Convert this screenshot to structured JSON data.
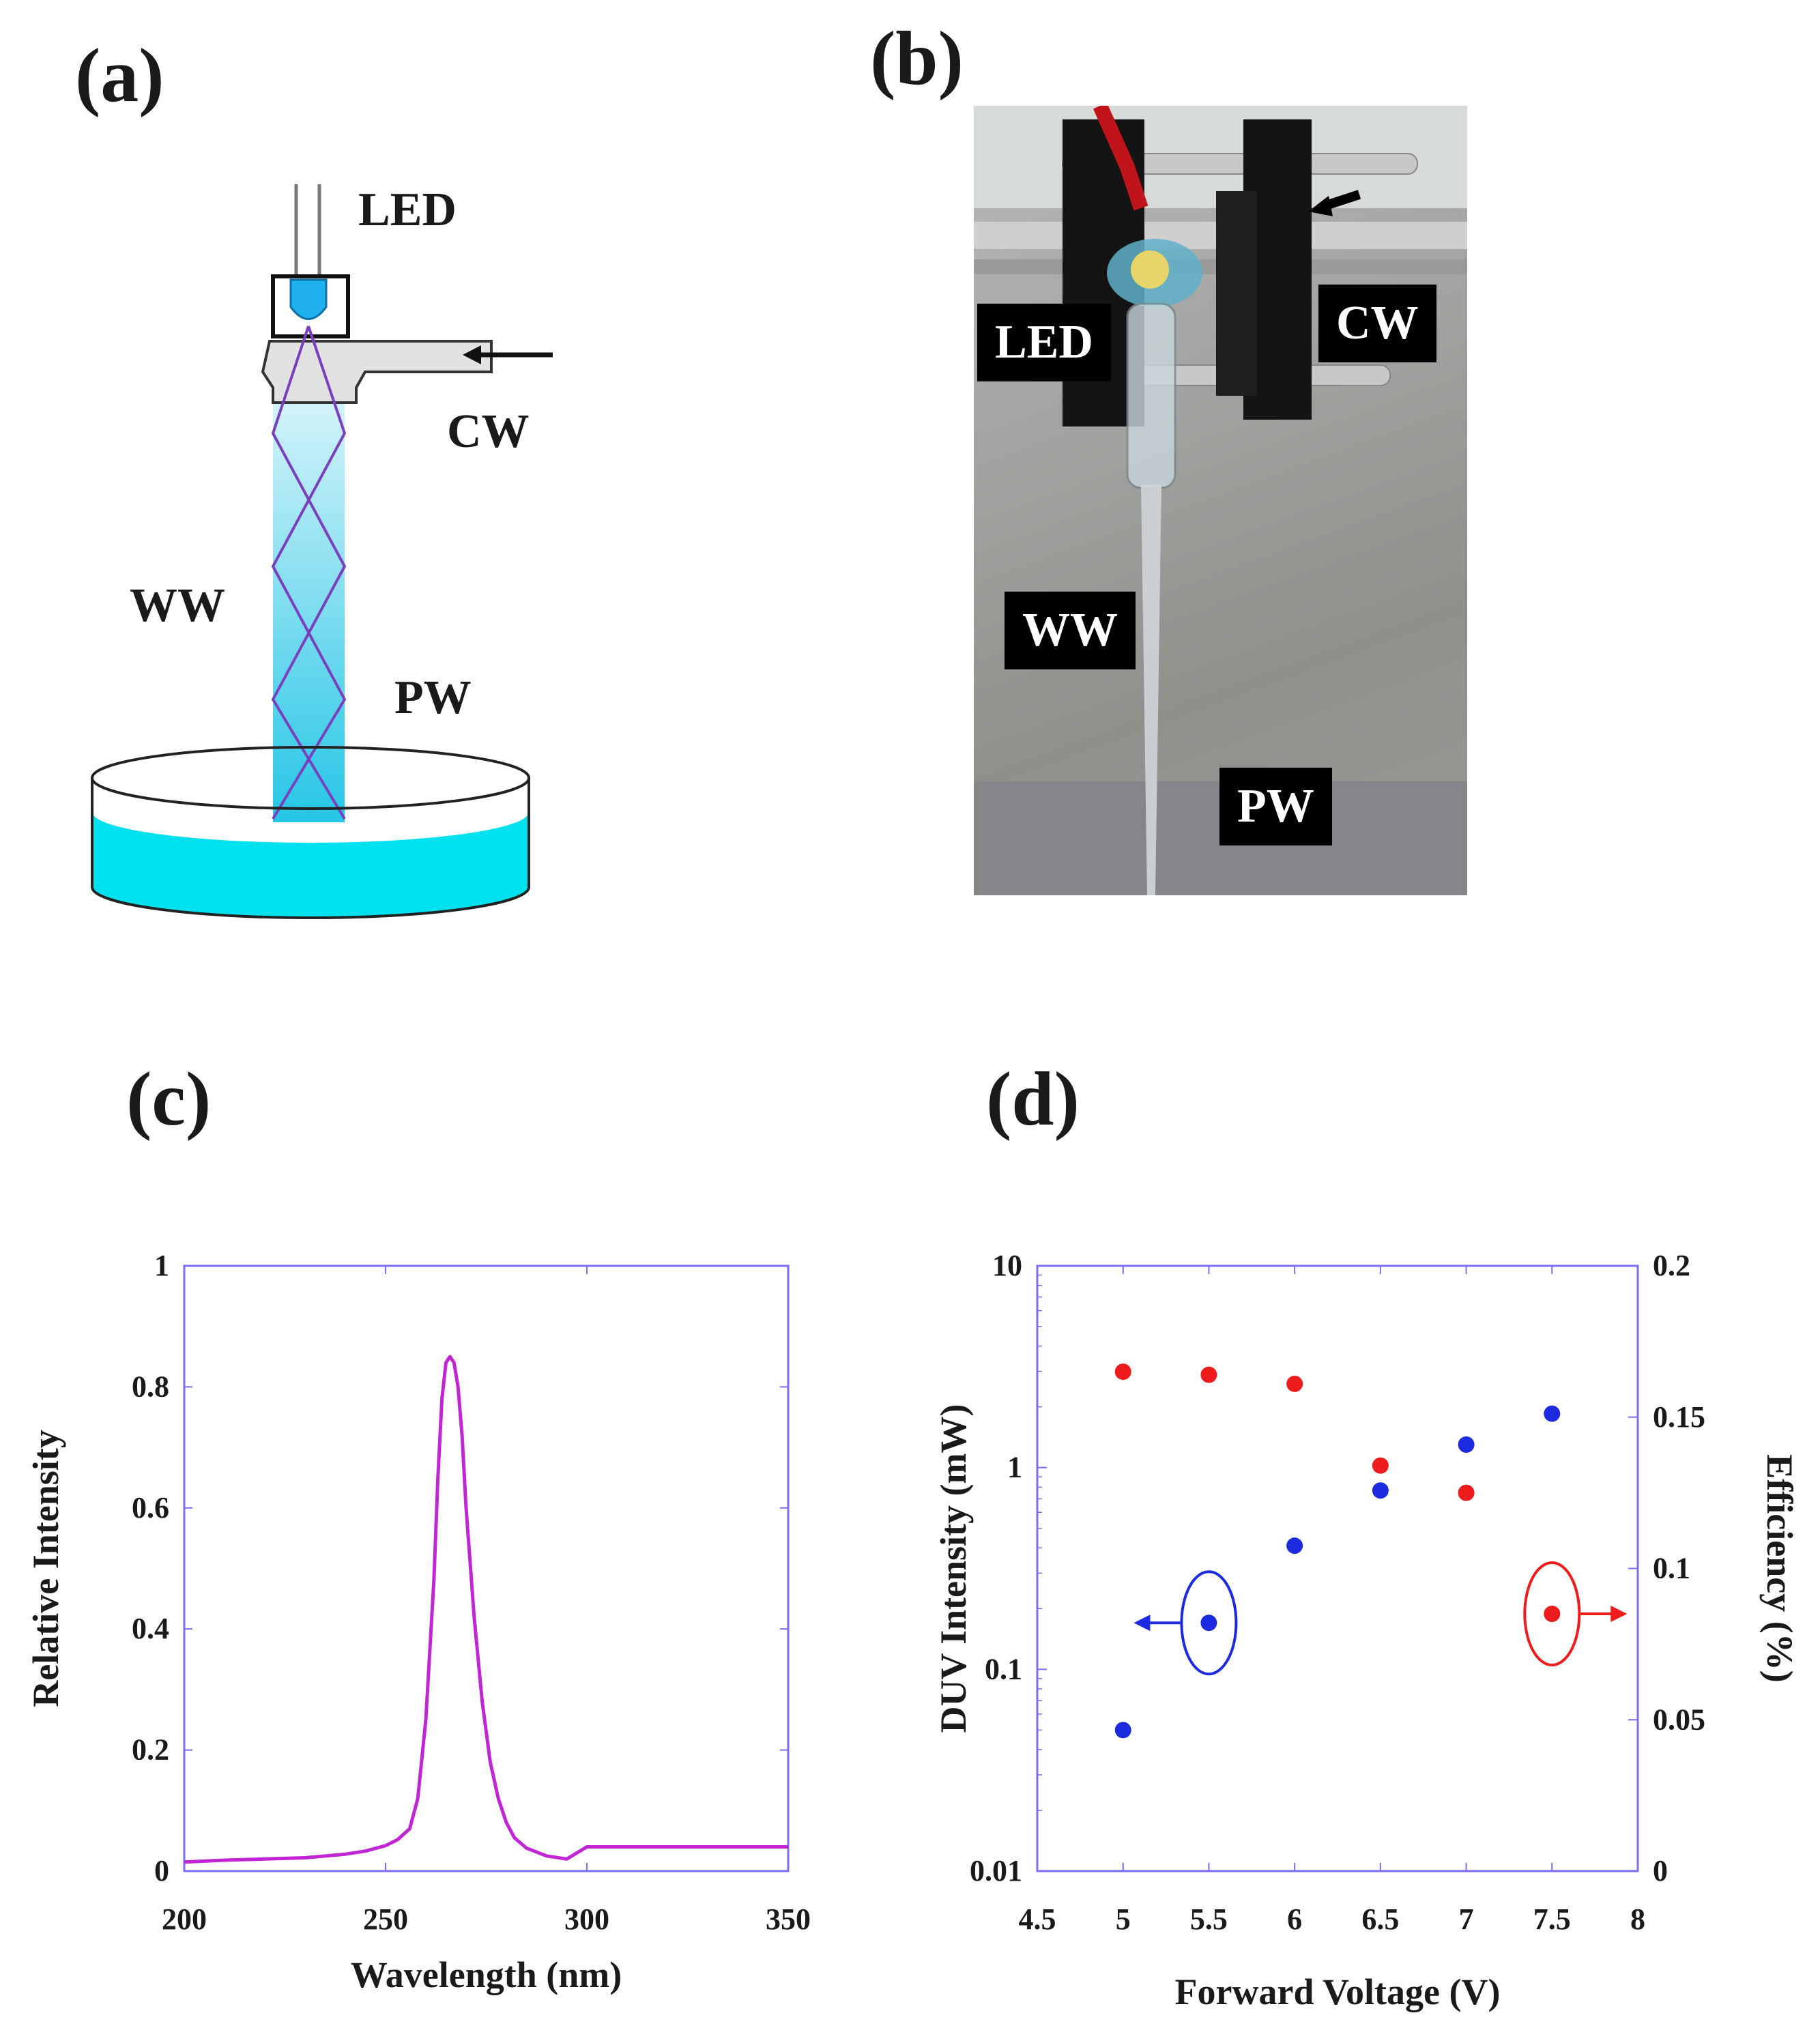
{
  "panels": {
    "a": {
      "label": "(a)",
      "labels": {
        "led": "LED",
        "cw": "CW",
        "ww": "WW",
        "pw": "PW"
      }
    },
    "b": {
      "label": "(b)",
      "labels": {
        "led": "LED",
        "cw": "CW",
        "ww": "WW",
        "pw": "PW"
      }
    },
    "c": {
      "label": "(c)"
    },
    "d": {
      "label": "(d)"
    }
  },
  "colors": {
    "axis": "#7b6cf6",
    "spectrum": "#c026d3",
    "duv": "#1d2be0",
    "efficiency": "#ee1c1c",
    "water": "#00e1f0",
    "beam_top": "#dff6fb",
    "beam_bottom": "#26c6e6"
  },
  "chart_data": [
    {
      "type": "line",
      "xlabel": "Wavelength (nm)",
      "ylabel": "Relative Intensity",
      "xlim": [
        200,
        350
      ],
      "ylim": [
        0,
        1
      ],
      "xticks": [
        200,
        250,
        300,
        350
      ],
      "yticks": [
        0,
        0.2,
        0.4,
        0.6,
        0.8,
        1
      ],
      "ytick_labels": [
        "0",
        "0.2",
        "0.4",
        "0.6",
        "0.8",
        "1"
      ],
      "series": [
        {
          "x": [
            200,
            210,
            220,
            230,
            240,
            245,
            250,
            253,
            256,
            258,
            260,
            262,
            263,
            264,
            265,
            266,
            267,
            268,
            269,
            270,
            272,
            274,
            276,
            278,
            280,
            282,
            285,
            290,
            295,
            300,
            310,
            320,
            330,
            340,
            350
          ],
          "y": [
            0.015,
            0.018,
            0.02,
            0.022,
            0.028,
            0.033,
            0.042,
            0.052,
            0.07,
            0.12,
            0.25,
            0.48,
            0.65,
            0.78,
            0.84,
            0.85,
            0.84,
            0.8,
            0.72,
            0.6,
            0.42,
            0.28,
            0.18,
            0.12,
            0.08,
            0.055,
            0.038,
            0.025,
            0.02,
            0.04,
            0.04,
            0.04,
            0.04,
            0.04,
            0.04
          ]
        }
      ]
    },
    {
      "type": "scatter",
      "xlabel": "Forward Voltage (V)",
      "ylabel": "DUV Intensity (mW)",
      "ylabel_right": "Efficiency (%)",
      "xlim": [
        4.5,
        8
      ],
      "xticks": [
        4.5,
        5,
        5.5,
        6,
        6.5,
        7,
        7.5,
        8
      ],
      "ylim": [
        0.01,
        10
      ],
      "yscale": "log",
      "yticks": [
        0.01,
        0.1,
        1,
        10
      ],
      "ytick_labels": [
        "0.01",
        "0.1",
        "1",
        "10"
      ],
      "ylim_right": [
        0,
        0.2
      ],
      "yticks_right": [
        0,
        0.05,
        0.1,
        0.15,
        0.2
      ],
      "ytick_labels_right": [
        "0",
        "0.05",
        "0.1",
        "0.15",
        "0.2"
      ],
      "series": [
        {
          "axis": "left",
          "x": [
            5,
            5.5,
            6,
            6.5,
            7,
            7.5
          ],
          "y": [
            0.05,
            0.17,
            0.41,
            0.77,
            1.3,
            1.85
          ]
        },
        {
          "axis": "right",
          "x": [
            5,
            5.5,
            6,
            6.5,
            7,
            7.5
          ],
          "y": [
            0.165,
            0.164,
            0.161,
            0.134,
            0.125,
            0.085
          ]
        }
      ],
      "annotations": [
        {
          "series": 0,
          "x": 5.5,
          "y": 0.17,
          "direction": "left"
        },
        {
          "series": 1,
          "x": 7.5,
          "y": 0.085,
          "direction": "right"
        }
      ]
    }
  ]
}
